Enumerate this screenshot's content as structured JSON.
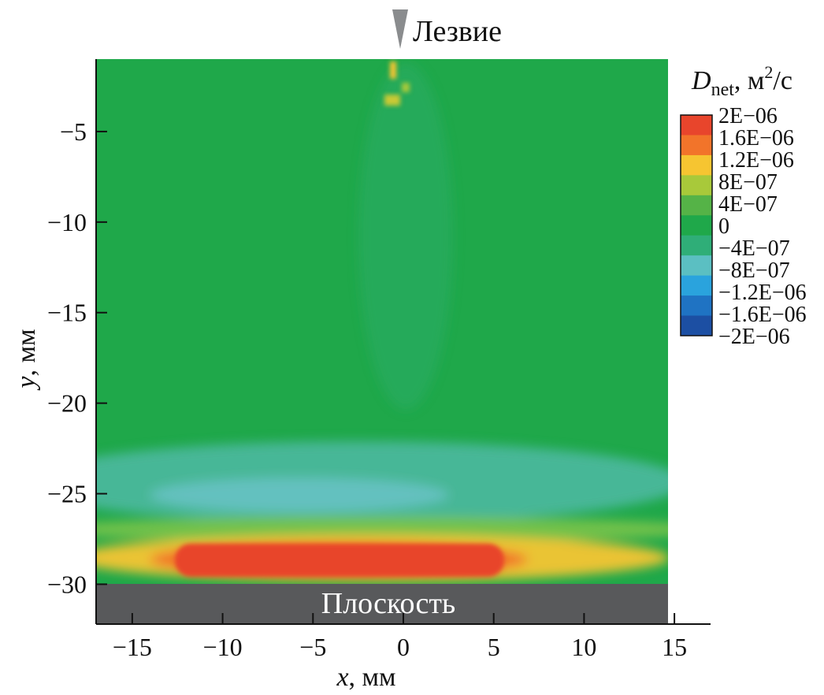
{
  "chart_data": {
    "type": "heatmap",
    "title": "",
    "xlabel": "x, мм",
    "ylabel": "y, мм",
    "xlim": [
      -17,
      17
    ],
    "ylim": [
      -32.2,
      -1
    ],
    "x_ticks": [
      -15,
      -10,
      -5,
      0,
      5,
      10,
      15
    ],
    "x_tick_labels": [
      "−15",
      "−10",
      "−5",
      "0",
      "5",
      "10",
      "15"
    ],
    "y_ticks": [
      -5,
      -10,
      -15,
      -20,
      -25,
      -30
    ],
    "y_tick_labels": [
      "−5",
      "−10",
      "−15",
      "−20",
      "−25",
      "−30"
    ],
    "field_extent": {
      "x": [
        -17,
        14.7
      ],
      "y": [
        -30,
        -1.2
      ]
    },
    "colorbar": {
      "title": "D",
      "title_sub": "net",
      "title_unit": ", м",
      "title_sup": "2",
      "title_tail": "/с",
      "labels": [
        "2E−06",
        "1.6E−06",
        "1.2E−06",
        "8E−07",
        "4E−07",
        "0",
        "−4E−07",
        "−8E−07",
        "−1.2E−06",
        "−1.6E−06",
        "−2E−06"
      ],
      "values": [
        2e-06,
        1.6e-06,
        1.2e-06,
        8e-07,
        4e-07,
        0,
        -4e-07,
        -8e-07,
        -1.2e-06,
        -1.6e-06,
        -2e-06
      ],
      "colors": [
        "#e8452c",
        "#f2742a",
        "#f6c531",
        "#a8c93a",
        "#55b347",
        "#1fa84a",
        "#2fae78",
        "#5bbfc2",
        "#2aa3dd",
        "#1f73c3",
        "#1c4fa3"
      ]
    },
    "features": [
      {
        "name": "background",
        "value": 0
      },
      {
        "name": "negative band",
        "y_range": [
          -27,
          -23
        ],
        "value": -6e-07
      },
      {
        "name": "positive band",
        "y_range": [
          -30,
          -27.5
        ],
        "x_range": [
          -12,
          5
        ],
        "value": 2e-06
      }
    ],
    "annotations": {
      "blade": "Лезвие",
      "plane": "Плоскость"
    },
    "colors": {
      "background_field": "#1fa84a",
      "plane": "#58595b"
    }
  }
}
